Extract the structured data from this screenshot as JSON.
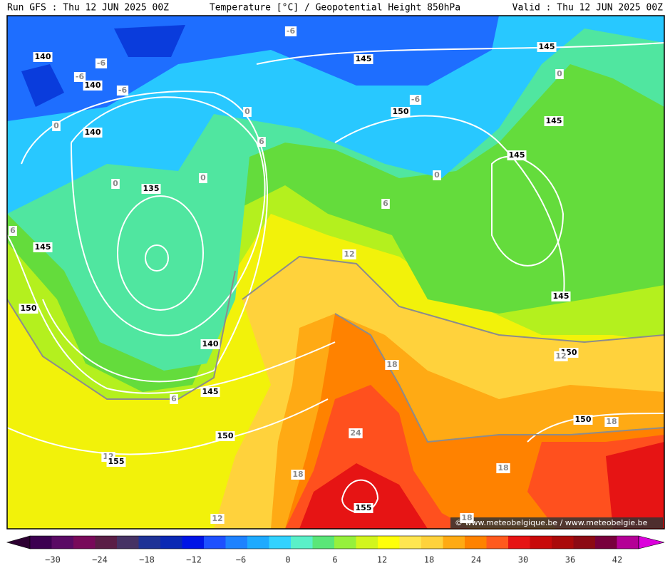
{
  "header": {
    "run": "Run GFS : Thu 12 JUN 2025 00Z",
    "title": "Temperature [°C] / Geopotential Height 850hPa",
    "valid": "Valid : Thu 12 JUN 2025 00Z"
  },
  "colorbar": {
    "labels": [
      "−30",
      "−24",
      "−18",
      "−12",
      "−6",
      "0",
      "6",
      "12",
      "18",
      "24",
      "30",
      "36",
      "42"
    ]
  },
  "contour_labels": [
    "140",
    "-6",
    "-6",
    "140",
    "-6",
    "0",
    "140",
    "0",
    "135",
    "0",
    "0",
    "6",
    "-6",
    "145",
    "145",
    "150",
    "-6",
    "0",
    "145",
    "145",
    "0",
    "6",
    "6",
    "145",
    "150",
    "12",
    "145",
    "140",
    "18",
    "150",
    "12",
    "145",
    "6",
    "150",
    "24",
    "150",
    "18",
    "12",
    "155",
    "18",
    "18",
    "155",
    "12",
    "18"
  ],
  "credit": "© www.meteobelgique.be / www.meteobelgie.be"
}
